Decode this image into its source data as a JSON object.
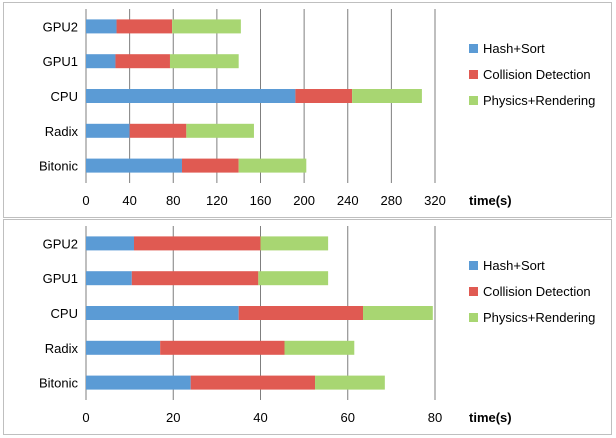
{
  "chart_data": [
    {
      "type": "bar",
      "orientation": "horizontal",
      "stacked": true,
      "title": "",
      "xlabel": "time(s)",
      "ylabel": "",
      "xlim": [
        0,
        320
      ],
      "xticks": [
        0,
        40,
        80,
        120,
        160,
        200,
        240,
        280,
        320
      ],
      "categories": [
        "GPU2",
        "GPU1",
        "CPU",
        "Radix",
        "Bitonic"
      ],
      "series": [
        {
          "name": "Hash+Sort",
          "color": "#5b9bd5",
          "values": [
            28,
            27,
            192,
            40,
            88
          ]
        },
        {
          "name": "Collision Detection",
          "color": "#e05a52",
          "values": [
            51,
            50,
            52,
            52,
            52
          ]
        },
        {
          "name": "Physics+Rendering",
          "color": "#a8d672",
          "values": [
            63,
            63,
            64,
            62,
            62
          ]
        }
      ],
      "legend": "right",
      "grid": true
    },
    {
      "type": "bar",
      "orientation": "horizontal",
      "stacked": true,
      "title": "",
      "xlabel": "time(s)",
      "ylabel": "",
      "xlim": [
        0,
        80
      ],
      "xticks": [
        0,
        20,
        40,
        60,
        80
      ],
      "categories": [
        "GPU2",
        "GPU1",
        "CPU",
        "Radix",
        "Bitonic"
      ],
      "series": [
        {
          "name": "Hash+Sort",
          "color": "#5b9bd5",
          "values": [
            11,
            10.5,
            35,
            17,
            24
          ]
        },
        {
          "name": "Collision Detection",
          "color": "#e05a52",
          "values": [
            29,
            29,
            28.5,
            28.5,
            28.5
          ]
        },
        {
          "name": "Physics+Rendering",
          "color": "#a8d672",
          "values": [
            15.5,
            16,
            16,
            16,
            16
          ]
        }
      ],
      "legend": "right",
      "grid": true
    }
  ]
}
